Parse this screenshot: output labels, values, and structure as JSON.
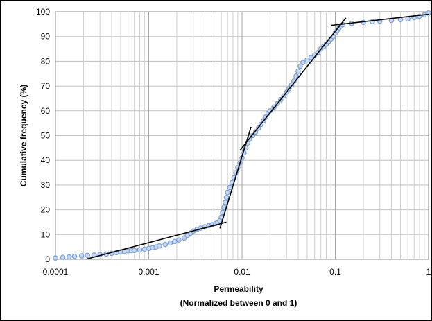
{
  "chart_data": {
    "type": "scatter",
    "title": "",
    "xlabel": "Permeability",
    "xlabel_line2": "(Normalized between 0 and 1)",
    "ylabel": "Cumulative frequency (%)",
    "xscale": "log",
    "xlim": [
      0.0001,
      1
    ],
    "ylim": [
      0,
      100
    ],
    "grid": true,
    "legend": "none",
    "x_tick_labels": [
      "0.0001",
      "0.001",
      "0.01",
      "0.1",
      "1"
    ],
    "y_tick_labels": [
      "0",
      "10",
      "20",
      "30",
      "40",
      "50",
      "60",
      "70",
      "80",
      "90",
      "100"
    ],
    "marker_color": "#7aa0d6",
    "line_color": "#000000",
    "series": [
      {
        "values": [
          [
            0.0001,
            0.5
          ],
          [
            0.00012,
            0.8
          ],
          [
            0.00014,
            1.0
          ],
          [
            0.00016,
            1.2
          ],
          [
            0.00019,
            1.4
          ],
          [
            0.00022,
            1.6
          ],
          [
            0.00026,
            1.7
          ],
          [
            0.0003,
            1.9
          ],
          [
            0.00035,
            2.1
          ],
          [
            0.0004,
            2.4
          ],
          [
            0.00045,
            2.7
          ],
          [
            0.0005,
            3.0
          ],
          [
            0.00055,
            3.2
          ],
          [
            0.0006,
            3.4
          ],
          [
            0.00065,
            3.5
          ],
          [
            0.0007,
            3.6
          ],
          [
            0.0008,
            3.8
          ],
          [
            0.0009,
            4.1
          ],
          [
            0.001,
            4.4
          ],
          [
            0.0011,
            4.7
          ],
          [
            0.0012,
            5.0
          ],
          [
            0.0013,
            5.4
          ],
          [
            0.0015,
            6.0
          ],
          [
            0.0017,
            6.6
          ],
          [
            0.0019,
            7.2
          ],
          [
            0.0021,
            7.8
          ],
          [
            0.0024,
            8.6
          ],
          [
            0.0026,
            9.6
          ],
          [
            0.0028,
            10.6
          ],
          [
            0.003,
            11.4
          ],
          [
            0.0033,
            12.1
          ],
          [
            0.0036,
            12.6
          ],
          [
            0.004,
            13.1
          ],
          [
            0.0044,
            13.6
          ],
          [
            0.0048,
            14.0
          ],
          [
            0.0052,
            14.4
          ],
          [
            0.0055,
            14.8
          ],
          [
            0.0058,
            15.6
          ],
          [
            0.006,
            17
          ],
          [
            0.0062,
            19
          ],
          [
            0.0064,
            21
          ],
          [
            0.0066,
            23
          ],
          [
            0.0068,
            25
          ],
          [
            0.007,
            27
          ],
          [
            0.0074,
            29
          ],
          [
            0.0078,
            31
          ],
          [
            0.0082,
            33
          ],
          [
            0.0086,
            35
          ],
          [
            0.009,
            37
          ],
          [
            0.0095,
            39
          ],
          [
            0.01,
            41
          ],
          [
            0.0105,
            43
          ],
          [
            0.011,
            45
          ],
          [
            0.0115,
            47
          ],
          [
            0.012,
            48.5
          ],
          [
            0.013,
            50
          ],
          [
            0.014,
            51.5
          ],
          [
            0.015,
            53
          ],
          [
            0.016,
            54.5
          ],
          [
            0.017,
            56
          ],
          [
            0.018,
            57.5
          ],
          [
            0.019,
            59
          ],
          [
            0.02,
            60
          ],
          [
            0.022,
            61.5
          ],
          [
            0.024,
            63
          ],
          [
            0.026,
            64.5
          ],
          [
            0.028,
            66
          ],
          [
            0.03,
            67.5
          ],
          [
            0.032,
            69
          ],
          [
            0.034,
            70.5
          ],
          [
            0.036,
            72
          ],
          [
            0.038,
            74
          ],
          [
            0.04,
            76
          ],
          [
            0.042,
            78
          ],
          [
            0.045,
            79.5
          ],
          [
            0.05,
            80.5
          ],
          [
            0.055,
            81.5
          ],
          [
            0.06,
            82.5
          ],
          [
            0.065,
            83.5
          ],
          [
            0.07,
            85
          ],
          [
            0.075,
            86
          ],
          [
            0.08,
            87
          ],
          [
            0.085,
            88
          ],
          [
            0.09,
            89
          ],
          [
            0.095,
            90
          ],
          [
            0.1,
            91.5
          ],
          [
            0.105,
            92.5
          ],
          [
            0.11,
            93.5
          ],
          [
            0.115,
            94.2
          ],
          [
            0.12,
            94.8
          ],
          [
            0.15,
            95.3
          ],
          [
            0.2,
            95.7
          ],
          [
            0.25,
            96.0
          ],
          [
            0.3,
            96.2
          ],
          [
            0.4,
            96.5
          ],
          [
            0.5,
            96.8
          ],
          [
            0.6,
            97.1
          ],
          [
            0.7,
            97.6
          ],
          [
            0.8,
            98.2
          ],
          [
            0.9,
            98.8
          ],
          [
            1.0,
            99.5
          ]
        ]
      }
    ],
    "fit_lines": [
      {
        "x": [
          0.00022,
          0.0068
        ],
        "y": [
          0.2,
          15
        ]
      },
      {
        "x": [
          0.0058,
          0.0125
        ],
        "y": [
          12.5,
          53.5
        ]
      },
      {
        "x": [
          0.0095,
          0.13
        ],
        "y": [
          44,
          97.5
        ]
      },
      {
        "x": [
          0.09,
          1.0
        ],
        "y": [
          94.5,
          99
        ]
      }
    ]
  }
}
